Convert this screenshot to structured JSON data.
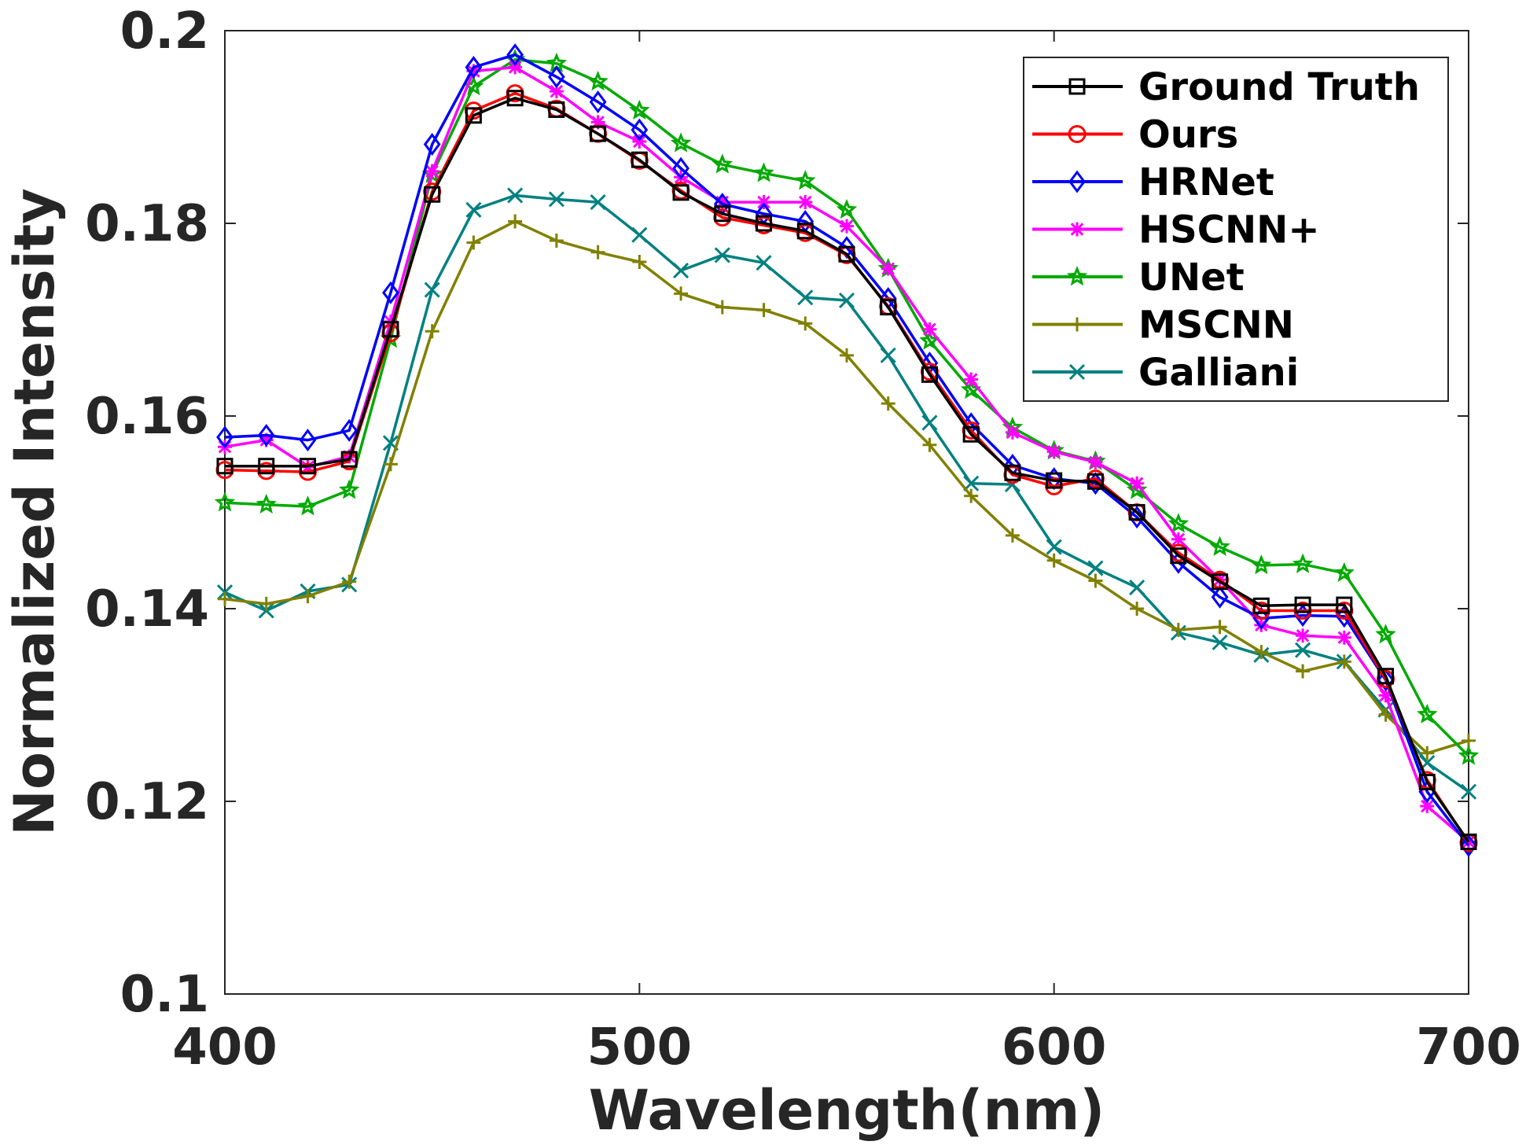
{
  "chart_data": {
    "type": "line",
    "title": "",
    "xlabel": "Wavelength(nm)",
    "ylabel": "Normalized Intensity",
    "xlim": [
      400,
      700
    ],
    "ylim": [
      0.1,
      0.2
    ],
    "xticks": [
      400,
      500,
      600,
      700
    ],
    "xtick_labels": [
      "400",
      "500",
      "600",
      "700"
    ],
    "yticks": [
      0.1,
      0.12,
      0.14,
      0.16,
      0.18,
      0.2
    ],
    "ytick_labels": [
      "0.1",
      "0.12",
      "0.14",
      "0.16",
      "0.18",
      "0.2"
    ],
    "grid": false,
    "legend_position": "top-right",
    "x": [
      400,
      410,
      420,
      430,
      440,
      450,
      460,
      470,
      480,
      490,
      500,
      510,
      520,
      530,
      540,
      550,
      560,
      570,
      580,
      590,
      600,
      610,
      620,
      630,
      640,
      650,
      660,
      670,
      680,
      690,
      700
    ],
    "series": [
      {
        "name": "Ground Truth",
        "color": "#000000",
        "marker": "square",
        "values": [
          0.1548,
          0.1548,
          0.1548,
          0.1555,
          0.169,
          0.183,
          0.1912,
          0.193,
          0.1918,
          0.1893,
          0.1866,
          0.1832,
          0.181,
          0.18,
          0.1792,
          0.1768,
          0.1713,
          0.1643,
          0.1581,
          0.1541,
          0.1533,
          0.1532,
          0.15,
          0.1455,
          0.1428,
          0.1403,
          0.1404,
          0.1404,
          0.133,
          0.122,
          0.1158
        ]
      },
      {
        "name": "Ours",
        "color": "#ff0000",
        "marker": "circle",
        "values": [
          0.1544,
          0.1543,
          0.1542,
          0.1553,
          0.1686,
          0.1833,
          0.1917,
          0.1935,
          0.1919,
          0.1893,
          0.1865,
          0.1834,
          0.1806,
          0.1798,
          0.179,
          0.1767,
          0.1714,
          0.1646,
          0.1585,
          0.1539,
          0.1527,
          0.1535,
          0.15,
          0.1458,
          0.143,
          0.1398,
          0.1398,
          0.1398,
          0.1327,
          0.1222,
          0.1157
        ]
      },
      {
        "name": "HRNet",
        "color": "#0000ff",
        "marker": "diamond",
        "values": [
          0.1578,
          0.158,
          0.1575,
          0.1585,
          0.1728,
          0.1882,
          0.1962,
          0.1975,
          0.1952,
          0.1926,
          0.1897,
          0.1857,
          0.182,
          0.181,
          0.1802,
          0.1775,
          0.1722,
          0.1655,
          0.1592,
          0.1549,
          0.1535,
          0.153,
          0.1495,
          0.1448,
          0.1412,
          0.139,
          0.1393,
          0.1392,
          0.1326,
          0.121,
          0.1154
        ]
      },
      {
        "name": "HSCNN+",
        "color": "#ff00ff",
        "marker": "asterisk",
        "values": [
          0.1568,
          0.1575,
          0.1547,
          0.1558,
          0.1698,
          0.1854,
          0.1958,
          0.1962,
          0.1937,
          0.1905,
          0.1885,
          0.1848,
          0.1822,
          0.1822,
          0.1822,
          0.1797,
          0.1753,
          0.169,
          0.1638,
          0.1583,
          0.1563,
          0.1552,
          0.153,
          0.1472,
          0.143,
          0.1383,
          0.1372,
          0.137,
          0.131,
          0.1195,
          0.1158
        ]
      },
      {
        "name": "UNet",
        "color": "#00aa00",
        "marker": "star",
        "values": [
          0.151,
          0.1508,
          0.1506,
          0.1523,
          0.168,
          0.1851,
          0.1942,
          0.197,
          0.1966,
          0.1947,
          0.1917,
          0.1883,
          0.1861,
          0.1852,
          0.1844,
          0.1814,
          0.1753,
          0.1678,
          0.1627,
          0.1588,
          0.1564,
          0.1553,
          0.1523,
          0.1488,
          0.1464,
          0.1445,
          0.1446,
          0.1437,
          0.1373,
          0.129,
          0.1247
        ]
      },
      {
        "name": "MSCNN",
        "color": "#808000",
        "marker": "plus",
        "values": [
          0.141,
          0.1405,
          0.1413,
          0.1428,
          0.155,
          0.1688,
          0.178,
          0.1802,
          0.1782,
          0.177,
          0.176,
          0.1727,
          0.1713,
          0.171,
          0.1696,
          0.1663,
          0.1613,
          0.157,
          0.1517,
          0.1476,
          0.145,
          0.1429,
          0.14,
          0.1378,
          0.1381,
          0.1355,
          0.1335,
          0.1345,
          0.129,
          0.125,
          0.1263
        ]
      },
      {
        "name": "Galliani",
        "color": "#008080",
        "marker": "x",
        "values": [
          0.1417,
          0.1398,
          0.1418,
          0.1425,
          0.1572,
          0.1731,
          0.1814,
          0.1829,
          0.1825,
          0.1822,
          0.1788,
          0.1751,
          0.1767,
          0.1759,
          0.1723,
          0.172,
          0.1663,
          0.1593,
          0.153,
          0.1529,
          0.1464,
          0.1442,
          0.1422,
          0.1375,
          0.1365,
          0.1352,
          0.1357,
          0.1345,
          0.1295,
          0.124,
          0.121
        ]
      }
    ]
  }
}
